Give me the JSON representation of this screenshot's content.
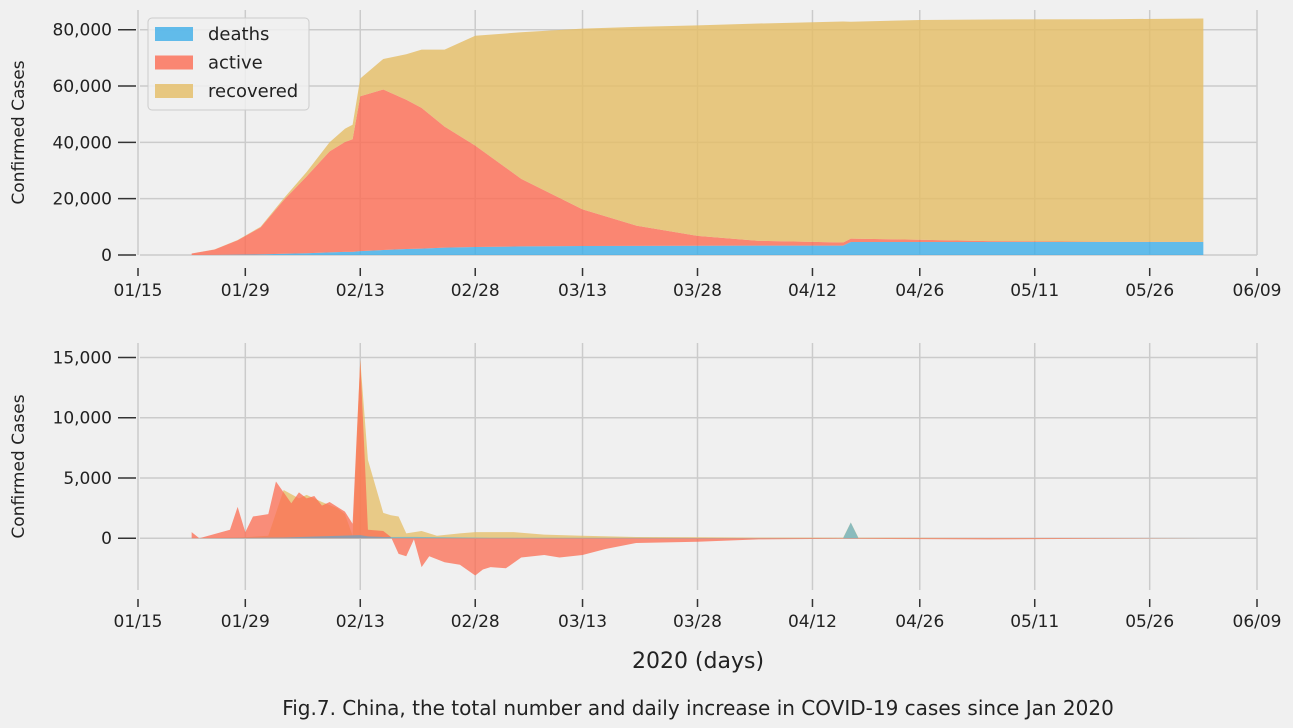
{
  "colors": {
    "deaths": "#3daee9",
    "active": "#fc6c52",
    "recovered": "#e5bd64",
    "background": "#f0f0f0",
    "grid": "#cbcbcb"
  },
  "figure": {
    "xlabel": "2020 (days)",
    "caption": "Fig.7. China, the total number and daily increase in COVID-19 cases since Jan 2020"
  },
  "chart_data": [
    {
      "type": "area",
      "stacked": true,
      "ylabel": "Confirmed Cases",
      "ylim": [
        0,
        87000
      ],
      "yticks": [
        0,
        20000,
        40000,
        60000,
        80000
      ],
      "ytick_labels": [
        "0",
        "20,000",
        "40,000",
        "60,000",
        "80,000"
      ],
      "xticks": [
        "2020-01-15",
        "2020-01-29",
        "2020-02-13",
        "2020-02-28",
        "2020-03-13",
        "2020-03-28",
        "2020-04-12",
        "2020-04-26",
        "2020-05-11",
        "2020-05-26",
        "2020-06-09"
      ],
      "xtick_labels": [
        "01/15",
        "01/29",
        "02/13",
        "02/28",
        "03/13",
        "03/28",
        "04/12",
        "04/26",
        "05/11",
        "05/26",
        "06/09"
      ],
      "xlim": [
        "2020-01-15",
        "2020-06-09"
      ],
      "legend_position": "top-left",
      "grid": true,
      "x": [
        "2020-01-22",
        "2020-01-25",
        "2020-01-28",
        "2020-01-31",
        "2020-02-03",
        "2020-02-06",
        "2020-02-09",
        "2020-02-11",
        "2020-02-12",
        "2020-02-13",
        "2020-02-16",
        "2020-02-19",
        "2020-02-21",
        "2020-02-24",
        "2020-02-28",
        "2020-03-05",
        "2020-03-13",
        "2020-03-20",
        "2020-03-28",
        "2020-04-05",
        "2020-04-16",
        "2020-04-17",
        "2020-04-26",
        "2020-05-05",
        "2020-05-20",
        "2020-06-02"
      ],
      "series": [
        {
          "name": "deaths",
          "values": [
            17,
            56,
            132,
            213,
            425,
            636,
            910,
            1113,
            1118,
            1371,
            1772,
            2122,
            2250,
            2600,
            2840,
            3045,
            3180,
            3250,
            3301,
            3331,
            3342,
            4636,
            4637,
            4637,
            4634,
            4634
          ]
        },
        {
          "name": "active",
          "values": [
            500,
            1900,
            5100,
            9600,
            19000,
            27300,
            35900,
            39000,
            40000,
            55000,
            57000,
            53000,
            50000,
            43000,
            36000,
            24000,
            13000,
            7200,
            3500,
            1700,
            1100,
            1200,
            800,
            300,
            80,
            60
          ]
        },
        {
          "name": "recovered",
          "values": [
            28,
            49,
            103,
            222,
            632,
            1540,
            3244,
            4740,
            5150,
            6300,
            10844,
            16155,
            20659,
            27323,
            39002,
            52045,
            64196,
            70547,
            74720,
            77167,
            78489,
            77000,
            78000,
            78700,
            79000,
            79300
          ]
        }
      ]
    },
    {
      "type": "area",
      "stacked": false,
      "ylabel": "Confirmed Cases",
      "ylim": [
        -4300,
        16200
      ],
      "yticks": [
        0,
        5000,
        10000,
        15000
      ],
      "ytick_labels": [
        "0",
        "5,000",
        "10,000",
        "15,000"
      ],
      "xticks": [
        "2020-01-15",
        "2020-01-29",
        "2020-02-13",
        "2020-02-28",
        "2020-03-13",
        "2020-03-28",
        "2020-04-12",
        "2020-04-26",
        "2020-05-11",
        "2020-05-26",
        "2020-06-09"
      ],
      "xtick_labels": [
        "01/15",
        "01/29",
        "02/13",
        "02/28",
        "03/13",
        "03/28",
        "04/12",
        "04/26",
        "05/11",
        "05/26",
        "06/09"
      ],
      "xlim": [
        "2020-01-15",
        "2020-06-09"
      ],
      "grid": true,
      "series": [
        {
          "name": "recovered",
          "x": [
            "2020-01-22",
            "2020-01-28",
            "2020-02-01",
            "2020-02-03",
            "2020-02-05",
            "2020-02-06",
            "2020-02-08",
            "2020-02-10",
            "2020-02-11",
            "2020-02-12",
            "2020-02-13",
            "2020-02-14",
            "2020-02-16",
            "2020-02-17",
            "2020-02-18",
            "2020-02-19",
            "2020-02-21",
            "2020-02-23",
            "2020-02-26",
            "2020-02-28",
            "2020-03-04",
            "2020-03-08",
            "2020-03-13",
            "2020-03-20",
            "2020-03-28",
            "2020-04-05",
            "2020-04-16",
            "2020-04-17",
            "2020-04-18",
            "2020-05-05",
            "2020-06-02"
          ],
          "values": [
            0,
            50,
            200,
            4000,
            3300,
            3600,
            3000,
            2500,
            2000,
            200,
            14800,
            6500,
            2100,
            1900,
            1800,
            400,
            600,
            200,
            400,
            500,
            500,
            300,
            200,
            100,
            80,
            50,
            40,
            1300,
            40,
            20,
            0
          ]
        },
        {
          "name": "active",
          "x": [
            "2020-01-22",
            "2020-01-23",
            "2020-01-27",
            "2020-01-28",
            "2020-01-29",
            "2020-01-30",
            "2020-02-01",
            "2020-02-02",
            "2020-02-04",
            "2020-02-05",
            "2020-02-06",
            "2020-02-07",
            "2020-02-08",
            "2020-02-09",
            "2020-02-11",
            "2020-02-12",
            "2020-02-13",
            "2020-02-14",
            "2020-02-16",
            "2020-02-17",
            "2020-02-18",
            "2020-02-19",
            "2020-02-20",
            "2020-02-21",
            "2020-02-22",
            "2020-02-24",
            "2020-02-26",
            "2020-02-28",
            "2020-02-29",
            "2020-03-01",
            "2020-03-03",
            "2020-03-05",
            "2020-03-08",
            "2020-03-10",
            "2020-03-13",
            "2020-03-16",
            "2020-03-20",
            "2020-03-28",
            "2020-04-05",
            "2020-04-16",
            "2020-05-05",
            "2020-06-02"
          ],
          "values": [
            500,
            0,
            700,
            2600,
            500,
            1800,
            2000,
            4700,
            2900,
            3800,
            3300,
            3500,
            2700,
            3000,
            2200,
            1200,
            14800,
            700,
            600,
            100,
            -1300,
            -1500,
            -100,
            -2400,
            -1500,
            -2000,
            -2200,
            -3100,
            -2600,
            -2400,
            -2500,
            -1600,
            -1400,
            -1600,
            -1400,
            -900,
            -400,
            -300,
            -100,
            -50,
            -100,
            0
          ]
        },
        {
          "name": "deaths",
          "x": [
            "2020-01-22",
            "2020-01-28",
            "2020-02-03",
            "2020-02-13",
            "2020-02-14",
            "2020-02-16",
            "2020-02-20",
            "2020-03-01",
            "2020-04-16",
            "2020-04-17",
            "2020-04-18",
            "2020-06-02"
          ],
          "values": [
            0,
            30,
            60,
            250,
            150,
            100,
            110,
            40,
            0,
            1300,
            0,
            0
          ]
        }
      ]
    }
  ]
}
